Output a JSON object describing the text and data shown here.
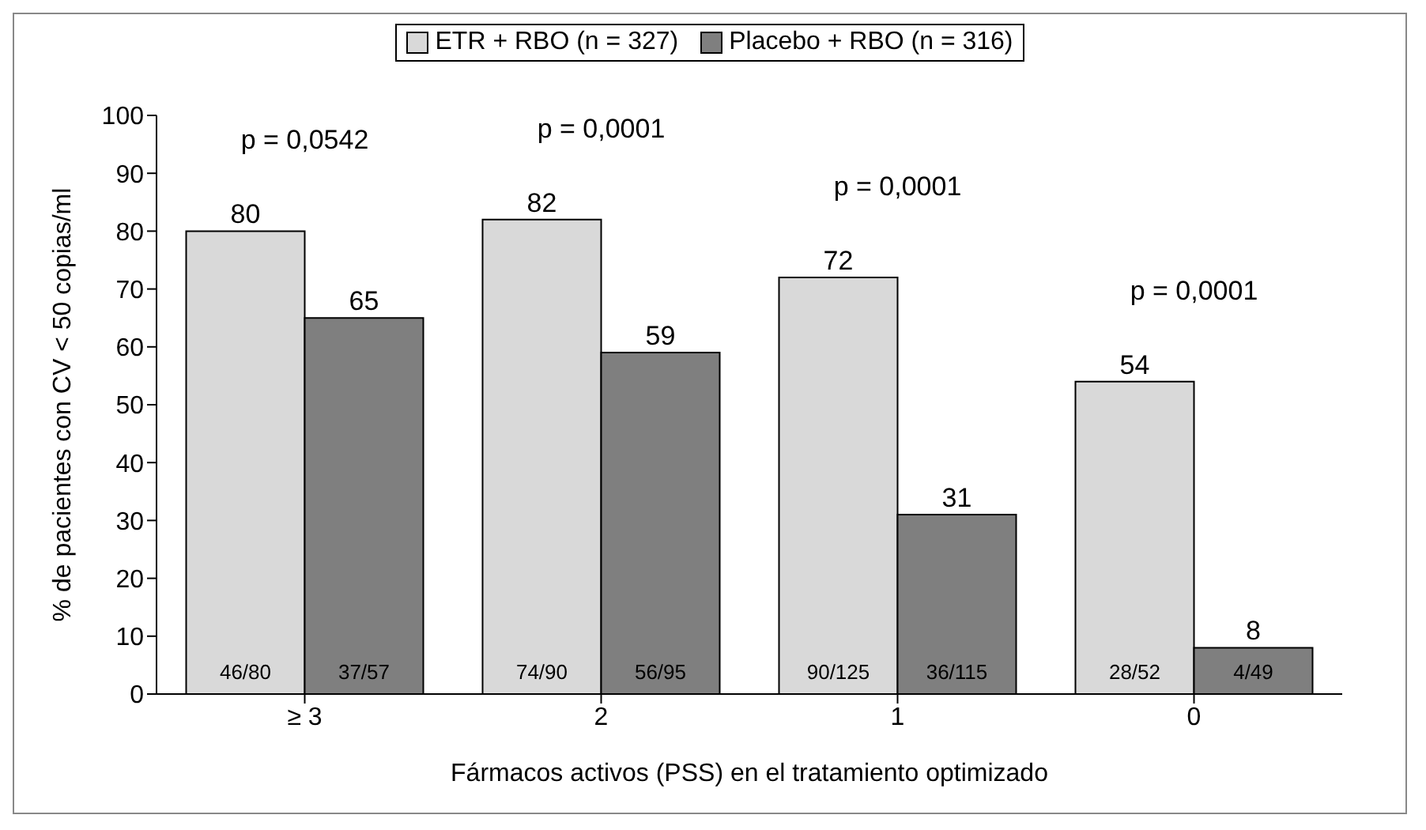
{
  "chart_data": {
    "type": "bar",
    "categories": [
      "≥ 3",
      "2",
      "1",
      "0"
    ],
    "series": [
      {
        "name": "ETR + RBO (n = 327)",
        "color": "#d9d9d9",
        "values": [
          80,
          82,
          72,
          54
        ]
      },
      {
        "name": "Placebo + RBO (n = 316)",
        "color": "#7f7f7f",
        "values": [
          65,
          59,
          31,
          8
        ]
      }
    ],
    "xlabel": "Fármacos activos (PSS) en el tratamiento optimizado",
    "ylabel": "% de pacientes con CV < 50 copias/ml",
    "ylim": [
      0,
      100
    ],
    "yticks": [
      0,
      10,
      20,
      30,
      40,
      50,
      60,
      70,
      80,
      90,
      100
    ],
    "data_labels": true,
    "grid": false,
    "legend": "top",
    "annotations": [
      "p = 0,0542",
      "p = 0,0001",
      "p = 0,0001",
      "p = 0,0001",
      "46/80",
      "37/57",
      "74/90",
      "56/95",
      "90/125",
      "36/115",
      "28/52",
      "4/49"
    ]
  }
}
